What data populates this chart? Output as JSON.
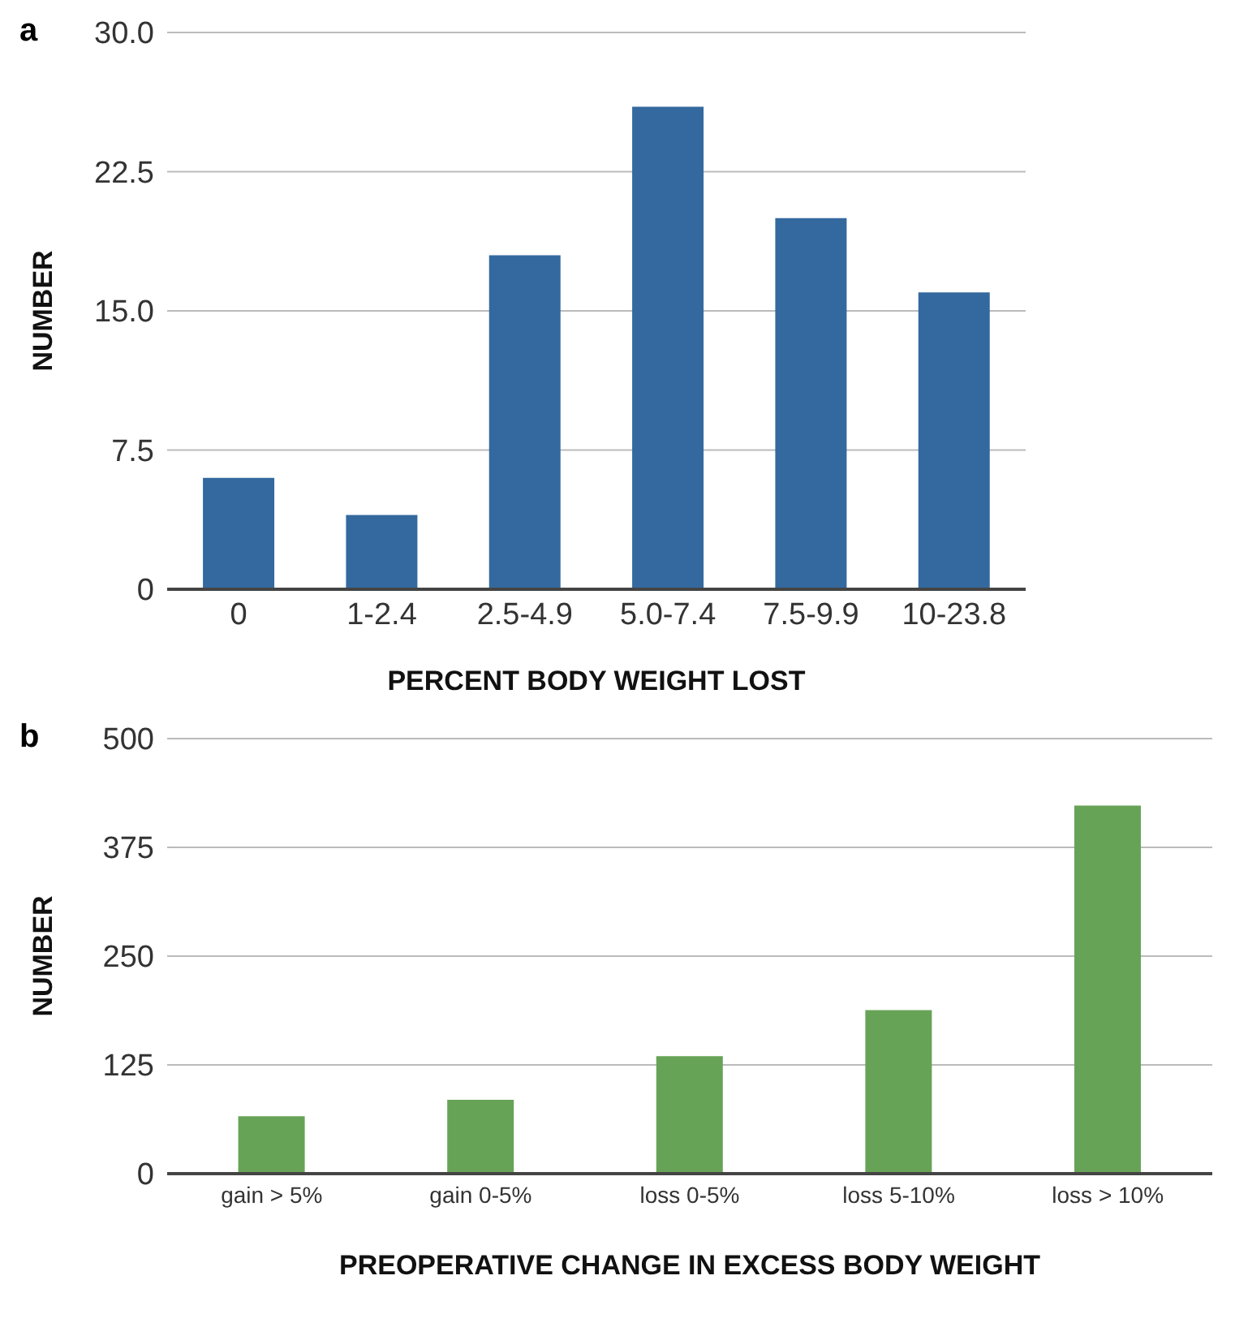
{
  "chart_data": [
    {
      "type": "bar",
      "title": "a",
      "categories": [
        "0",
        "1-2.4",
        "2.5-4.9",
        "5.0-7.4",
        "7.5-9.9",
        "10-23.8"
      ],
      "values": [
        6,
        4,
        18,
        26,
        20,
        16
      ],
      "color": "#34699f",
      "ylim": [
        0,
        30
      ],
      "yticks": [
        {
          "value": 0,
          "label": "0"
        },
        {
          "value": 7.5,
          "label": "7.5"
        },
        {
          "value": 15,
          "label": "15.0"
        },
        {
          "value": 22.5,
          "label": "22.5"
        },
        {
          "value": 30,
          "label": "30.0"
        }
      ],
      "grid": "y",
      "xlabel": "PERCENT BODY WEIGHT LOST",
      "ylabel": "NUMBER"
    },
    {
      "type": "bar",
      "title": "b",
      "categories": [
        "gain > 5%",
        "gain 0-5%",
        "loss 0-5%",
        "loss 5-10%",
        "loss > 10%"
      ],
      "values": [
        66,
        85,
        135,
        188,
        423
      ],
      "color": "#67a356",
      "ylim": [
        0,
        500
      ],
      "yticks": [
        0,
        125,
        250,
        375,
        500
      ],
      "grid": "y",
      "xlabel": "PREOPERATIVE CHANGE IN EXCESS BODY WEIGHT",
      "ylabel": "NUMBER"
    }
  ]
}
